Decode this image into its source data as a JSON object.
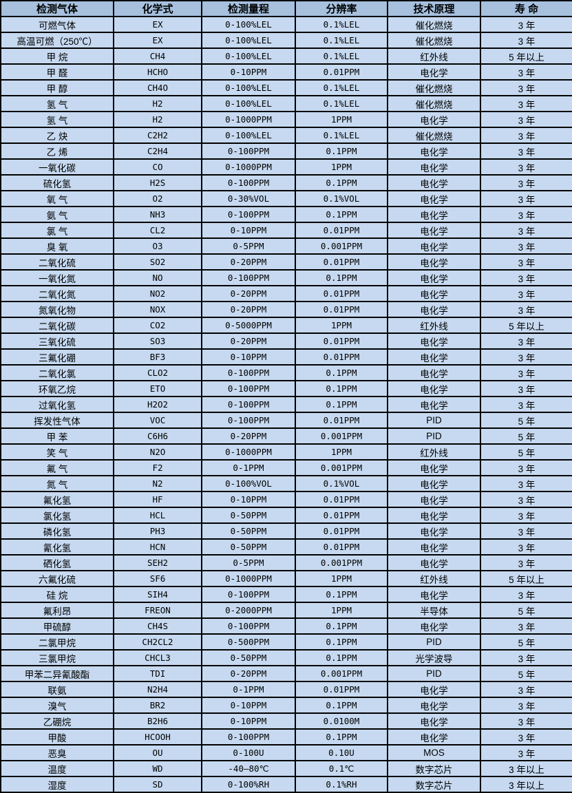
{
  "colors": {
    "header_bg": "#a6c0de",
    "row_bg": "#c6d9f0",
    "border": "#000000",
    "text": "#000000"
  },
  "table": {
    "columns": [
      {
        "key": "gas",
        "label": "检测气体"
      },
      {
        "key": "formula",
        "label": "化学式"
      },
      {
        "key": "range",
        "label": "检测量程"
      },
      {
        "key": "resolution",
        "label": "分辨率"
      },
      {
        "key": "principle",
        "label": "技术原理"
      },
      {
        "key": "lifespan",
        "label": "寿 命"
      }
    ],
    "rows": [
      [
        "可燃气体",
        "EX",
        "0-100%LEL",
        "0.1%LEL",
        "催化燃烧",
        "3 年"
      ],
      [
        "高温可燃（250℃）",
        "EX",
        "0-100%LEL",
        "0.1%LEL",
        "催化燃烧",
        "3 年"
      ],
      [
        "甲 烷",
        "CH4",
        "0-100%LEL",
        "0.1%LEL",
        "红外线",
        "5 年以上"
      ],
      [
        "甲 醛",
        "HCHO",
        "0-10PPM",
        "0.01PPM",
        "电化学",
        "3 年"
      ],
      [
        "甲 醇",
        "CH4O",
        "0-100%LEL",
        "0.1%LEL",
        "催化燃烧",
        "3 年"
      ],
      [
        "氢 气",
        "H2",
        "0-100%LEL",
        "0.1%LEL",
        "催化燃烧",
        "3 年"
      ],
      [
        "氢 气",
        "H2",
        "0-1000PPM",
        "1PPM",
        "电化学",
        "3 年"
      ],
      [
        "乙 炔",
        "C2H2",
        "0-100%LEL",
        "0.1%LEL",
        "催化燃烧",
        "3 年"
      ],
      [
        "乙 烯",
        "C2H4",
        "0-100PPM",
        "0.1PPM",
        "电化学",
        "3 年"
      ],
      [
        "一氧化碳",
        "CO",
        "0-1000PPM",
        "1PPM",
        "电化学",
        "3 年"
      ],
      [
        "硫化氢",
        "H2S",
        "0-100PPM",
        "0.1PPM",
        "电化学",
        "3 年"
      ],
      [
        "氧 气",
        "O2",
        "0-30%VOL",
        "0.1%VOL",
        "电化学",
        "3 年"
      ],
      [
        "氨 气",
        "NH3",
        "0-100PPM",
        "0.1PPM",
        "电化学",
        "3 年"
      ],
      [
        "氯 气",
        "CL2",
        "0-10PPM",
        "0.01PPM",
        "电化学",
        "3 年"
      ],
      [
        "臭 氧",
        "O3",
        "0-5PPM",
        "0.001PPM",
        "电化学",
        "3 年"
      ],
      [
        "二氧化硫",
        "SO2",
        "0-20PPM",
        "0.01PPM",
        "电化学",
        "3 年"
      ],
      [
        "一氧化氮",
        "NO",
        "0-100PPM",
        "0.1PPM",
        "电化学",
        "3 年"
      ],
      [
        "二氧化氮",
        "NO2",
        "0-20PPM",
        "0.01PPM",
        "电化学",
        "3 年"
      ],
      [
        "氮氧化物",
        "NOX",
        "0-20PPM",
        "0.01PPM",
        "电化学",
        "3 年"
      ],
      [
        "二氧化碳",
        "CO2",
        "0-5000PPM",
        "1PPM",
        "红外线",
        "5 年以上"
      ],
      [
        "三氧化硫",
        "SO3",
        "0-20PPM",
        "0.01PPM",
        "电化学",
        "3 年"
      ],
      [
        "三氟化硼",
        "BF3",
        "0-10PPM",
        "0.01PPM",
        "电化学",
        "3 年"
      ],
      [
        "二氧化氯",
        "CLO2",
        "0-100PPM",
        "0.1PPM",
        "电化学",
        "3 年"
      ],
      [
        "环氧乙烷",
        "ETO",
        "0-100PPM",
        "0.1PPM",
        "电化学",
        "3 年"
      ],
      [
        "过氧化氢",
        "H2O2",
        "0-100PPM",
        "0.1PPM",
        "电化学",
        "3 年"
      ],
      [
        "挥发性气体",
        "VOC",
        "0-100PPM",
        "0.01PPM",
        "PID",
        "5 年"
      ],
      [
        "甲 苯",
        "C6H6",
        "0-20PPM",
        "0.001PPM",
        "PID",
        "5 年"
      ],
      [
        "笑 气",
        "N2O",
        "0-1000PPM",
        "1PPM",
        "红外线",
        "5 年"
      ],
      [
        "氟 气",
        "F2",
        "0-1PPM",
        "0.001PPM",
        "电化学",
        "3 年"
      ],
      [
        "氮 气",
        "N2",
        "0-100%VOL",
        "0.1%VOL",
        "电化学",
        "3 年"
      ],
      [
        "氟化氢",
        "HF",
        "0-10PPM",
        "0.01PPM",
        "电化学",
        "3 年"
      ],
      [
        "氯化氢",
        "HCL",
        "0-50PPM",
        "0.01PPM",
        "电化学",
        "3 年"
      ],
      [
        "磷化氢",
        "PH3",
        "0-50PPM",
        "0.01PPM",
        "电化学",
        "3 年"
      ],
      [
        "氰化氢",
        "HCN",
        "0-50PPM",
        "0.01PPM",
        "电化学",
        "3 年"
      ],
      [
        "硒化氢",
        "SEH2",
        "0-5PPM",
        "0.001PPM",
        "电化学",
        "3 年"
      ],
      [
        "六氟化硫",
        "SF6",
        "0-1000PPM",
        "1PPM",
        "红外线",
        "5 年以上"
      ],
      [
        "硅 烷",
        "SIH4",
        "0-100PPM",
        "0.1PPM",
        "电化学",
        "3 年"
      ],
      [
        "氟利昂",
        "FREON",
        "0-2000PPM",
        "1PPM",
        "半导体",
        "5 年"
      ],
      [
        "甲硫醇",
        "CH4S",
        "0-100PPM",
        "0.1PPM",
        "电化学",
        "3 年"
      ],
      [
        "二氯甲烷",
        "CH2CL2",
        "0-500PPM",
        "0.1PPM",
        "PID",
        "5 年"
      ],
      [
        "三氯甲烷",
        "CHCL3",
        "0-50PPM",
        "0.1PPM",
        "光学波导",
        "3 年"
      ],
      [
        "甲苯二异氰酸酯",
        "TDI",
        "0-20PPM",
        "0.001PPM",
        "PID",
        "5 年"
      ],
      [
        "联氨",
        "N2H4",
        "0-1PPM",
        "0.01PPM",
        "电化学",
        "3 年"
      ],
      [
        "溴气",
        "BR2",
        "0-10PPM",
        "0.1PPM",
        "电化学",
        "3 年"
      ],
      [
        "乙硼烷",
        "B2H6",
        "0-10PPM",
        "0.0100M",
        "电化学",
        "3 年"
      ],
      [
        "甲酸",
        "HCOOH",
        "0-100PPM",
        "0.1PPM",
        "电化学",
        "3 年"
      ],
      [
        "恶臭",
        "OU",
        "0-100U",
        "0.10U",
        "MOS",
        "3 年"
      ],
      [
        "温度",
        "WD",
        "-40—80℃",
        "0.1℃",
        "数字芯片",
        "3 年以上"
      ],
      [
        "湿度",
        "SD",
        "0-100%RH",
        "0.1%RH",
        "数字芯片",
        "3 年以上"
      ]
    ]
  }
}
